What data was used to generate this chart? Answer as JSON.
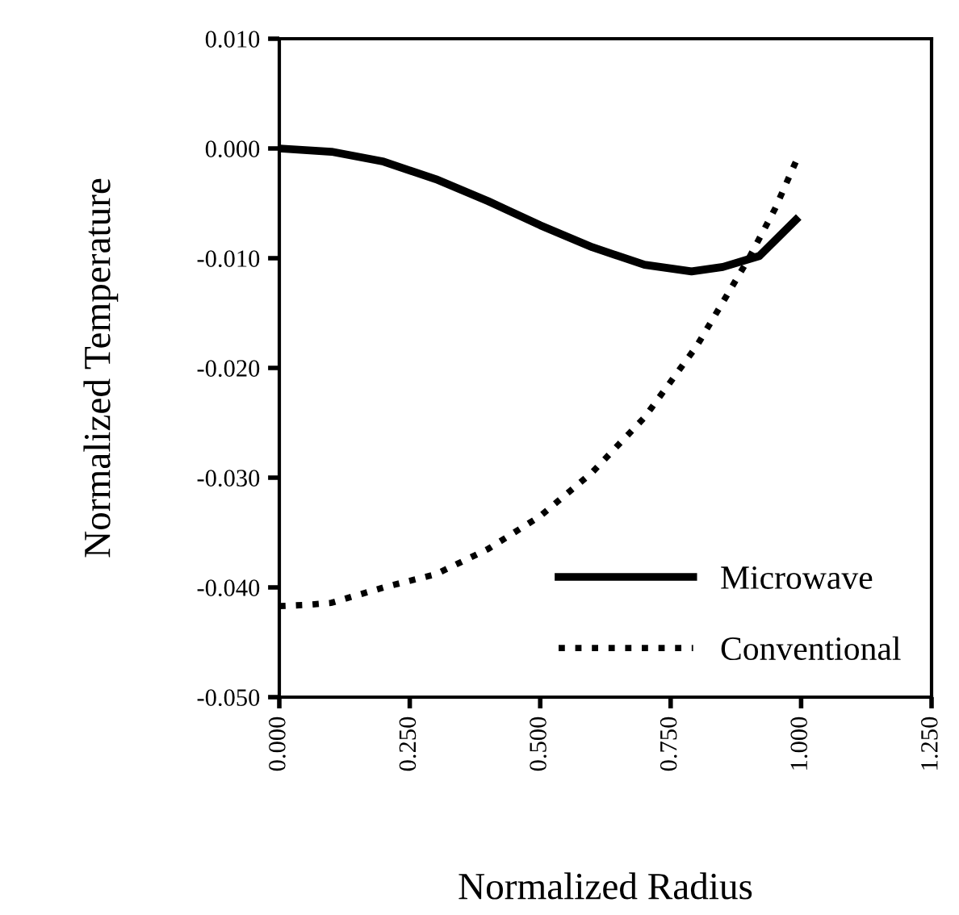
{
  "chart_data": {
    "type": "line",
    "xlabel": "Normalized Radius",
    "ylabel": "Normalized Temperature",
    "xlim": [
      0,
      1.25
    ],
    "ylim": [
      -0.05,
      0.01
    ],
    "xticks": [
      {
        "value": 0,
        "label": "0.000"
      },
      {
        "value": 0.25,
        "label": "0.250"
      },
      {
        "value": 0.5,
        "label": "0.500"
      },
      {
        "value": 0.75,
        "label": "0.750"
      },
      {
        "value": 1,
        "label": "1.000"
      },
      {
        "value": 1.25,
        "label": "1.250"
      }
    ],
    "yticks": [
      {
        "value": -0.05,
        "label": "-0.050"
      },
      {
        "value": -0.04,
        "label": "-0.040"
      },
      {
        "value": -0.03,
        "label": "-0.030"
      },
      {
        "value": -0.02,
        "label": "-0.020"
      },
      {
        "value": -0.01,
        "label": "-0.010"
      },
      {
        "value": 0,
        "label": "0.000"
      },
      {
        "value": 0.01,
        "label": "0.010"
      }
    ],
    "grid": false,
    "legend": "bottom right",
    "marker": "none",
    "series": [
      {
        "name": "Microwave",
        "color": "#000000",
        "line_style": "solid",
        "x": [
          0,
          0.1,
          0.2,
          0.3,
          0.4,
          0.5,
          0.6,
          0.7,
          0.79,
          0.85,
          0.92,
          0.99
        ],
        "values": [
          0.0,
          -0.0003,
          -0.0012,
          -0.0028,
          -0.0048,
          -0.007,
          -0.009,
          -0.0106,
          -0.0112,
          -0.0108,
          -0.0098,
          -0.0065
        ]
      },
      {
        "name": "Conventional",
        "color": "#000000",
        "line_style": "dotted",
        "x": [
          0,
          0.05,
          0.1,
          0.2,
          0.3,
          0.4,
          0.5,
          0.6,
          0.7,
          0.8,
          0.9,
          0.95,
          0.99
        ],
        "values": [
          -0.0417,
          -0.0416,
          -0.0414,
          -0.04,
          -0.0388,
          -0.0365,
          -0.0335,
          -0.0295,
          -0.0245,
          -0.018,
          -0.01,
          -0.0055,
          -0.0012
        ]
      }
    ]
  }
}
